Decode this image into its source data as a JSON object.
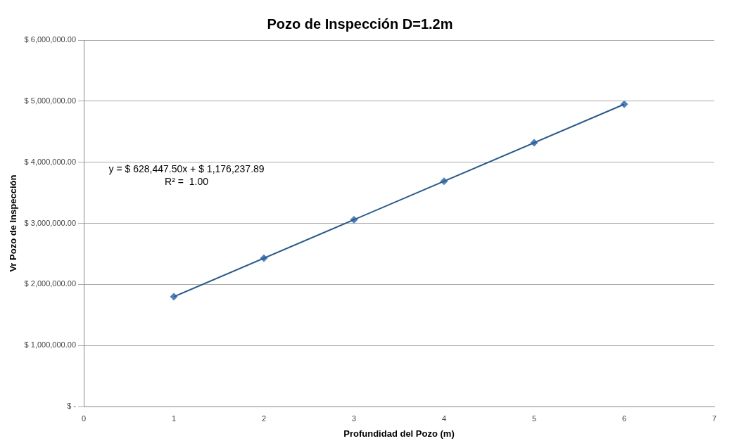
{
  "chart_data": {
    "type": "scatter",
    "title": "Pozo de Inspección D=1.2m",
    "xlabel": "Profundidad del Pozo (m)",
    "ylabel": "Vr Pozo de Inspección",
    "series": [
      {
        "type": "scatter",
        "color": "#4f81bd",
        "x": [
          1,
          2,
          3,
          4,
          5,
          6
        ],
        "values": [
          1800000,
          2430000,
          3060000,
          3690000,
          4320000,
          4950000
        ],
        "marker": "diamond"
      },
      {
        "type": "line",
        "color": "#2c5b8c",
        "x": [
          1,
          6
        ],
        "values": [
          1800000,
          4950000
        ],
        "marker": "none",
        "line_style": "solid"
      }
    ],
    "xlim": [
      0,
      7
    ],
    "xticks": [
      0,
      1,
      2,
      3,
      4,
      5,
      6,
      7
    ],
    "ylim": [
      0,
      6000000
    ],
    "yticks": [
      {
        "value": 0,
        "label": "$ -"
      },
      {
        "value": 1000000,
        "label": "$ 1,000,000.00"
      },
      {
        "value": 2000000,
        "label": "$ 2,000,000.00"
      },
      {
        "value": 3000000,
        "label": "$ 3,000,000.00"
      },
      {
        "value": 4000000,
        "label": "$ 4,000,000.00"
      },
      {
        "value": 5000000,
        "label": "$ 5,000,000.00"
      },
      {
        "value": 6000000,
        "label": "$ 6,000,000.00"
      }
    ],
    "grid": "y",
    "legend": false,
    "annotations": [
      "y = $ 628,447.50x + $ 1,176,237.89",
      "R² =  1.00"
    ]
  }
}
